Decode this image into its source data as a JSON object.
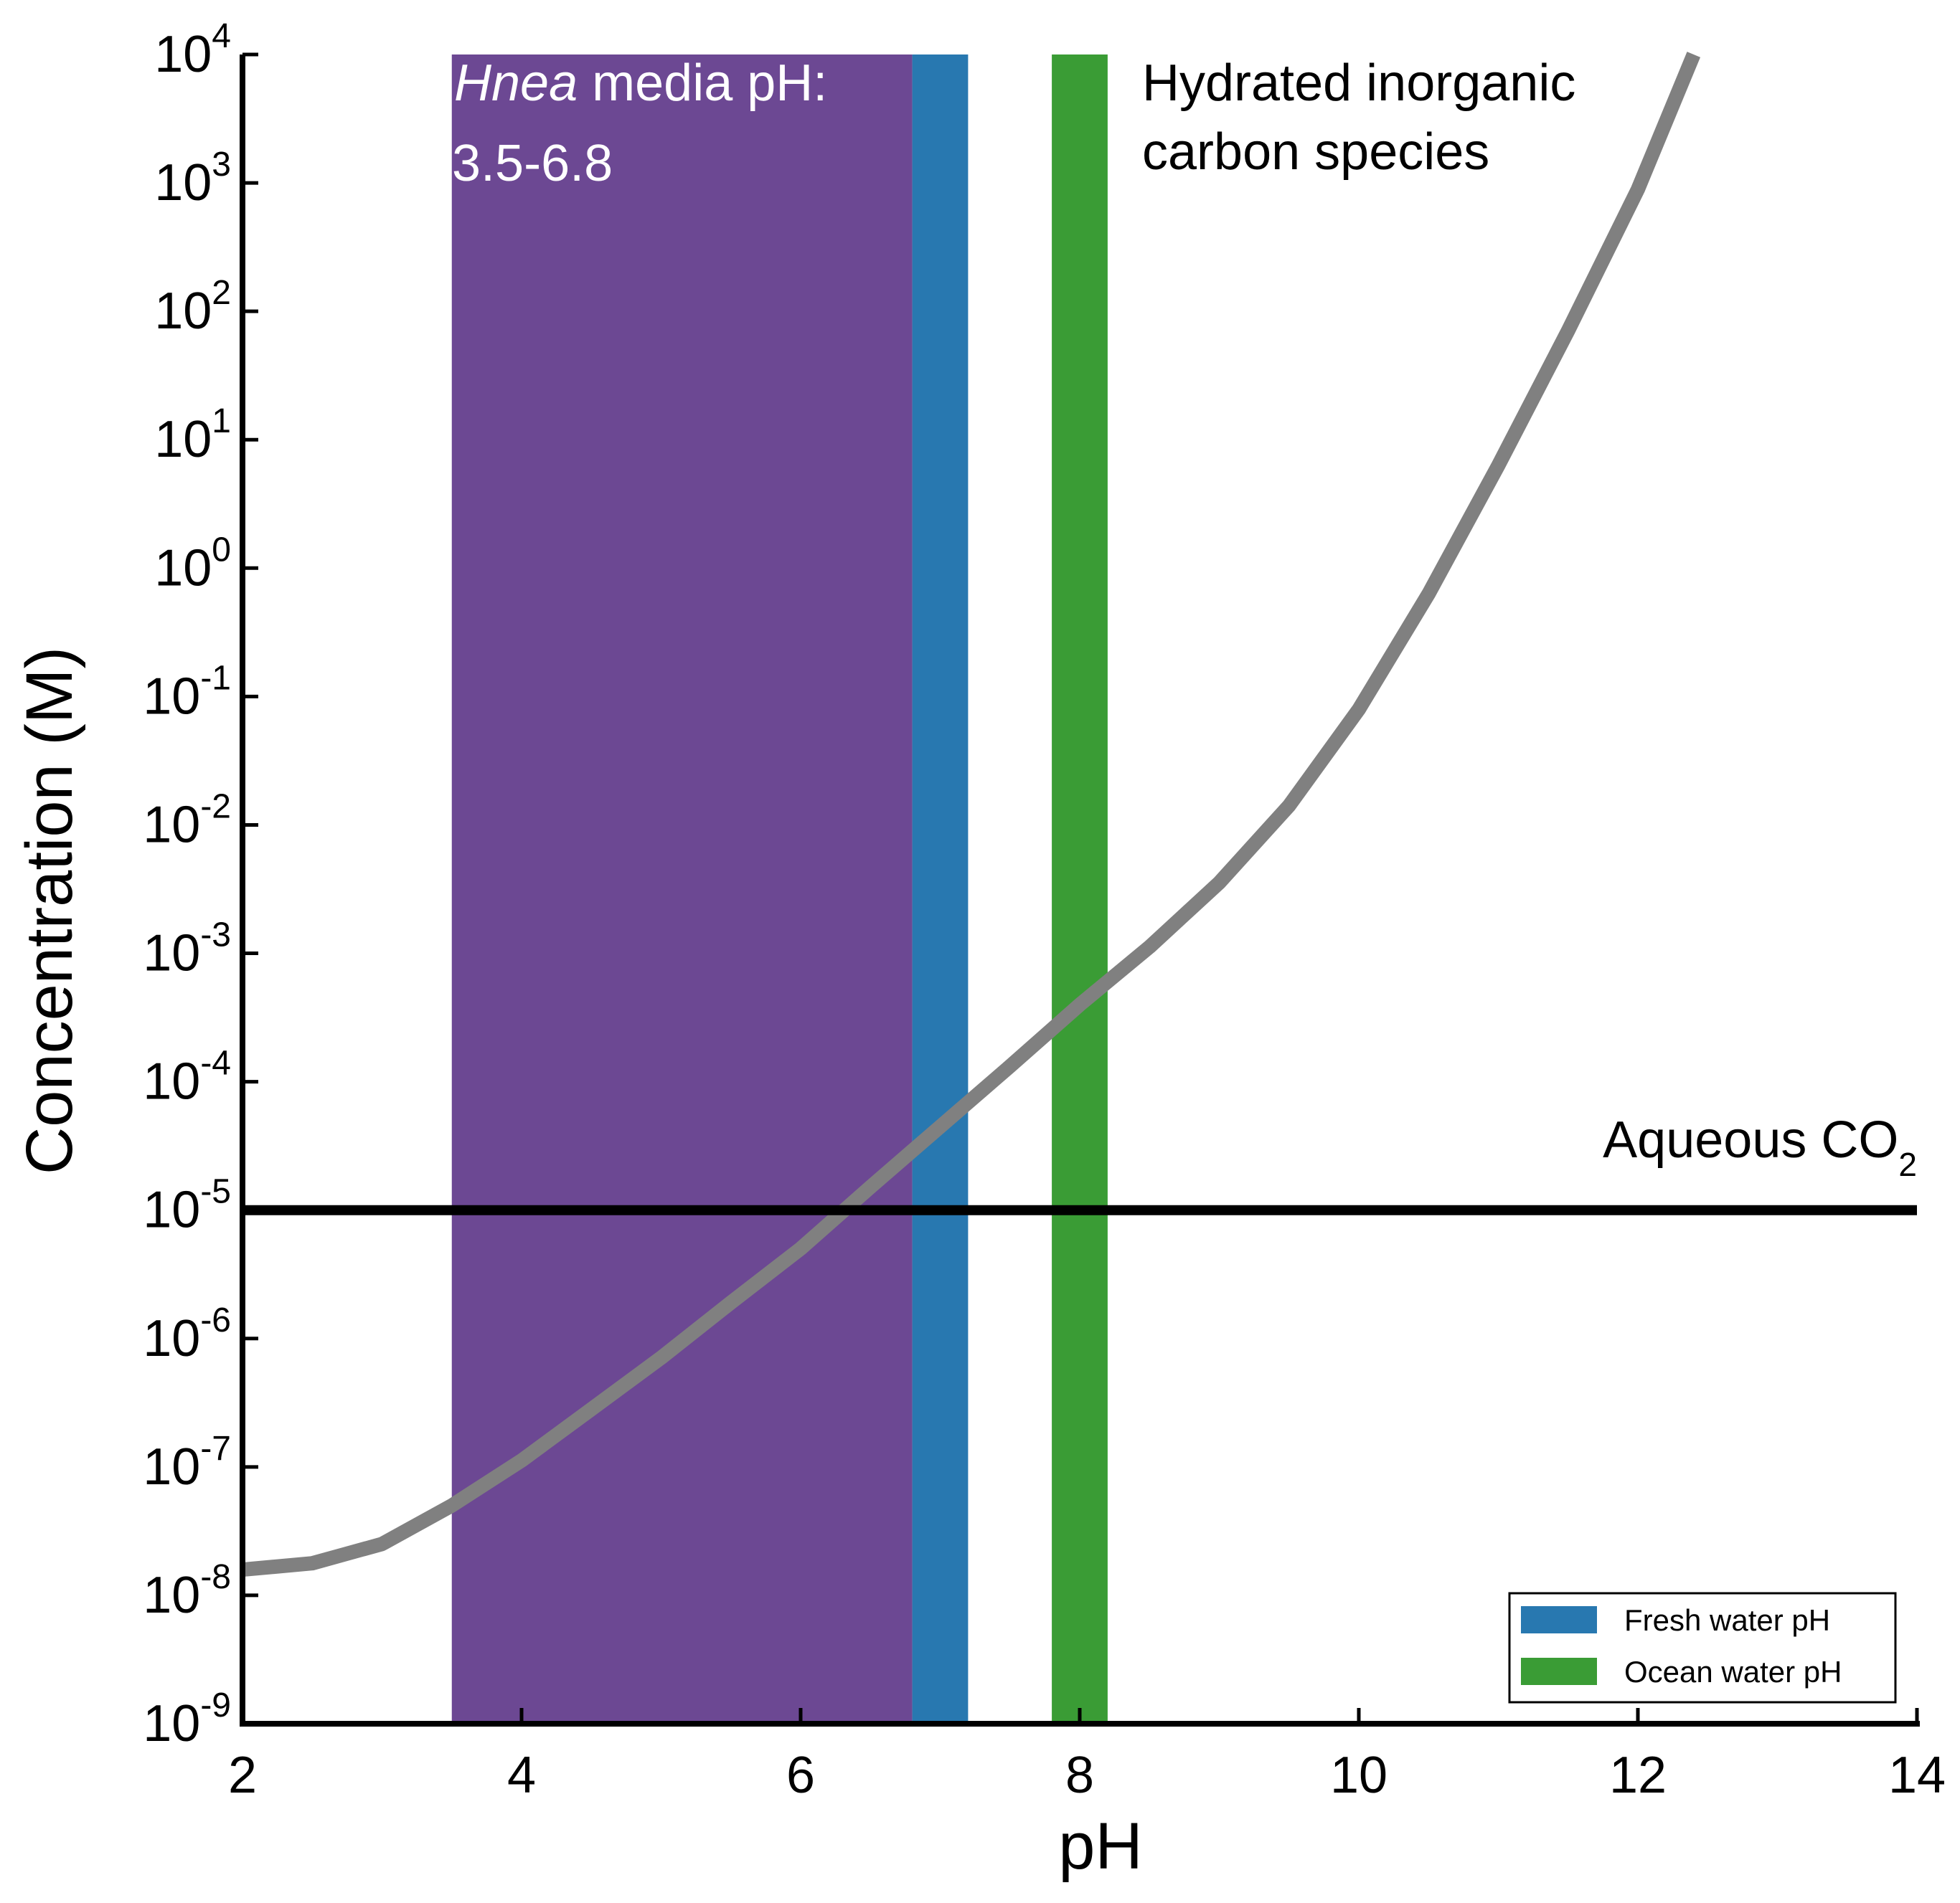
{
  "chart_data": {
    "type": "line",
    "xlabel": "pH",
    "ylabel": "Concentration (M)",
    "xlim": [
      2,
      14
    ],
    "ylim_log10": [
      -9,
      4
    ],
    "xticks": [
      2,
      4,
      6,
      8,
      10,
      12,
      14
    ],
    "yticks": [
      {
        "base": "10",
        "exp": "4"
      },
      {
        "base": "10",
        "exp": "3"
      },
      {
        "base": "10",
        "exp": "2"
      },
      {
        "base": "10",
        "exp": "1"
      },
      {
        "base": "10",
        "exp": "0"
      },
      {
        "base": "10",
        "exp": "-1"
      },
      {
        "base": "10",
        "exp": "-2"
      },
      {
        "base": "10",
        "exp": "-3"
      },
      {
        "base": "10",
        "exp": "-4"
      },
      {
        "base": "10",
        "exp": "-5"
      },
      {
        "base": "10",
        "exp": "-6"
      },
      {
        "base": "10",
        "exp": "-7"
      },
      {
        "base": "10",
        "exp": "-8"
      },
      {
        "base": "10",
        "exp": "-9"
      }
    ],
    "series": [
      {
        "name": "Hydrated inorganic carbon species",
        "color": "#808080",
        "points": [
          [
            2.0,
            -7.8
          ],
          [
            2.5,
            -7.75
          ],
          [
            3.0,
            -7.6
          ],
          [
            3.5,
            -7.3
          ],
          [
            4.0,
            -6.95
          ],
          [
            4.5,
            -6.55
          ],
          [
            5.0,
            -6.15
          ],
          [
            5.5,
            -5.72
          ],
          [
            6.0,
            -5.3
          ],
          [
            6.5,
            -4.82
          ],
          [
            7.0,
            -4.35
          ],
          [
            7.5,
            -3.88
          ],
          [
            8.0,
            -3.4
          ],
          [
            8.5,
            -2.95
          ],
          [
            9.0,
            -2.45
          ],
          [
            9.5,
            -1.85
          ],
          [
            10.0,
            -1.1
          ],
          [
            10.5,
            -0.2
          ],
          [
            11.0,
            0.8
          ],
          [
            11.5,
            1.85
          ],
          [
            12.0,
            2.95
          ],
          [
            12.4,
            4.0
          ]
        ]
      },
      {
        "name": "Aqueous CO2",
        "color": "#000000",
        "points": [
          [
            2.0,
            -5.0
          ],
          [
            14.0,
            -5.0
          ]
        ]
      }
    ],
    "bands": [
      {
        "name": "Hnea media pH",
        "range": [
          3.5,
          6.8
        ],
        "color": "#6c4893"
      },
      {
        "name": "Fresh water pH",
        "range": [
          6.8,
          7.2
        ],
        "color": "#2878b0"
      },
      {
        "name": "Ocean water pH",
        "range": [
          7.8,
          8.2
        ],
        "color": "#3a9c35"
      }
    ],
    "annotations": {
      "hnea_italic": "Hnea",
      "hnea_rest": " media pH:",
      "hnea_range": "3.5-6.8",
      "carbon_line1": "Hydrated inorganic",
      "carbon_line2": "carbon species",
      "co2_main": "Aqueous CO",
      "co2_sub": "2"
    },
    "legend": {
      "position": "bottom-right",
      "entries": [
        {
          "label": "Fresh water pH",
          "color": "#2878b0"
        },
        {
          "label": "Ocean water pH",
          "color": "#3a9c35"
        }
      ]
    }
  }
}
